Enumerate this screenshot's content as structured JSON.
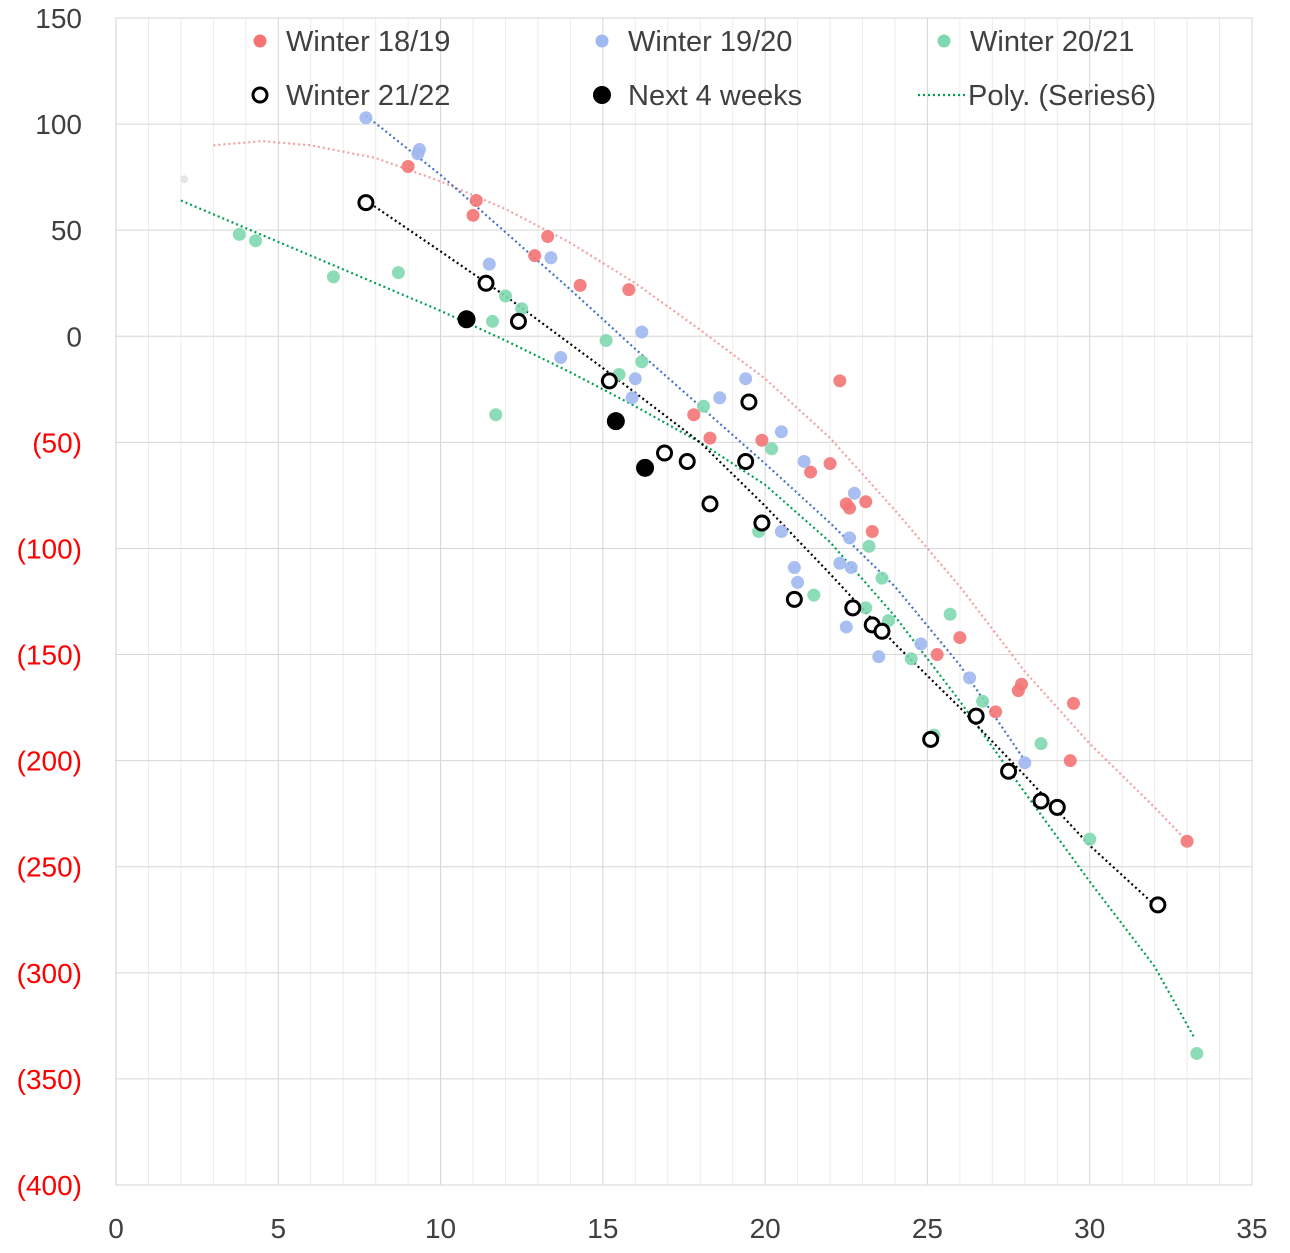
{
  "chart_data": {
    "type": "scatter",
    "title": "",
    "xlabel": "",
    "ylabel": "",
    "xlim": [
      0,
      35
    ],
    "ylim": [
      -400,
      150
    ],
    "x_ticks": [
      0,
      5,
      10,
      15,
      20,
      25,
      30,
      35
    ],
    "x_tick_labels": [
      "0",
      "5",
      "10",
      "15",
      "20",
      "25",
      "30",
      "35"
    ],
    "y_ticks": [
      150,
      100,
      50,
      0,
      -50,
      -100,
      -150,
      -200,
      -250,
      -300,
      -350,
      -400
    ],
    "y_tick_labels": [
      "150",
      "100",
      "50",
      "0",
      "(50)",
      "(100)",
      "(150)",
      "(200)",
      "(250)",
      "(300)",
      "(350)",
      "(400)"
    ],
    "negative_label_color": "#ff0000",
    "grid": true,
    "minor_vertical_grid": true,
    "legend_position": "top",
    "legend": [
      {
        "label": "Winter 18/19",
        "series": "winter-18-19"
      },
      {
        "label": "Winter 19/20",
        "series": "winter-19-20"
      },
      {
        "label": "Winter 20/21",
        "series": "winter-20-21"
      },
      {
        "label": "Winter 21/22",
        "series": "winter-21-22"
      },
      {
        "label": "Next 4 weeks",
        "series": "next-4-weeks"
      },
      {
        "label": "Poly. (Series6)",
        "series": "poly-series6"
      }
    ],
    "series": [
      {
        "id": "winter-18-19",
        "name": "Winter 18/19",
        "color": "#f47474",
        "marker": "filled-circle",
        "points": [
          [
            9.0,
            80
          ],
          [
            11.0,
            57
          ],
          [
            11.1,
            64
          ],
          [
            12.9,
            38
          ],
          [
            13.3,
            47
          ],
          [
            14.3,
            24
          ],
          [
            15.8,
            22
          ],
          [
            17.8,
            -37
          ],
          [
            18.3,
            -48
          ],
          [
            19.9,
            -49
          ],
          [
            21.4,
            -64
          ],
          [
            22.0,
            -60
          ],
          [
            22.3,
            -21
          ],
          [
            22.5,
            -79
          ],
          [
            22.6,
            -81
          ],
          [
            23.1,
            -78
          ],
          [
            23.3,
            -92
          ],
          [
            25.3,
            -150
          ],
          [
            26.0,
            -142
          ],
          [
            27.1,
            -177
          ],
          [
            27.8,
            -167
          ],
          [
            27.9,
            -164
          ],
          [
            29.4,
            -200
          ],
          [
            29.5,
            -173
          ],
          [
            33.0,
            -238
          ]
        ]
      },
      {
        "id": "winter-19-20",
        "name": "Winter 19/20",
        "color": "#a0b8f0",
        "marker": "filled-circle",
        "points": [
          [
            7.7,
            103
          ],
          [
            9.3,
            86
          ],
          [
            9.35,
            88
          ],
          [
            11.5,
            34
          ],
          [
            13.4,
            37
          ],
          [
            13.7,
            -10
          ],
          [
            15.9,
            -29
          ],
          [
            16.0,
            -20
          ],
          [
            16.2,
            2
          ],
          [
            18.6,
            -29
          ],
          [
            19.4,
            -20
          ],
          [
            20.5,
            -45
          ],
          [
            20.5,
            -92
          ],
          [
            20.9,
            -109
          ],
          [
            21.0,
            -116
          ],
          [
            21.2,
            -59
          ],
          [
            22.3,
            -107
          ],
          [
            22.5,
            -137
          ],
          [
            22.6,
            -95
          ],
          [
            22.65,
            -109
          ],
          [
            22.75,
            -74
          ],
          [
            23.5,
            -151
          ],
          [
            24.8,
            -145
          ],
          [
            26.3,
            -161
          ],
          [
            28.0,
            -201
          ]
        ]
      },
      {
        "id": "winter-20-21",
        "name": "Winter 20/21",
        "color": "#80d8b0",
        "marker": "filled-circle",
        "points": [
          [
            3.8,
            48
          ],
          [
            4.3,
            45
          ],
          [
            6.7,
            28
          ],
          [
            8.7,
            30
          ],
          [
            11.6,
            7
          ],
          [
            11.7,
            -37
          ],
          [
            12.0,
            19
          ],
          [
            12.5,
            13
          ],
          [
            15.1,
            -2
          ],
          [
            15.5,
            -18
          ],
          [
            16.2,
            -12
          ],
          [
            18.1,
            -33
          ],
          [
            19.8,
            -92
          ],
          [
            20.2,
            -53
          ],
          [
            21.5,
            -122
          ],
          [
            23.1,
            -128
          ],
          [
            23.2,
            -99
          ],
          [
            23.6,
            -114
          ],
          [
            23.8,
            -134
          ],
          [
            24.5,
            -152
          ],
          [
            25.2,
            -188
          ],
          [
            25.7,
            -131
          ],
          [
            26.7,
            -172
          ],
          [
            28.5,
            -192
          ],
          [
            29.0,
            -223
          ],
          [
            30.0,
            -237
          ],
          [
            33.3,
            -338
          ]
        ]
      },
      {
        "id": "winter-21-22",
        "name": "Winter 21/22",
        "color": "#000000",
        "marker": "open-circle",
        "points": [
          [
            7.7,
            63
          ],
          [
            11.4,
            25
          ],
          [
            12.4,
            7
          ],
          [
            15.2,
            -21
          ],
          [
            16.9,
            -55
          ],
          [
            17.6,
            -59
          ],
          [
            18.3,
            -79
          ],
          [
            19.4,
            -59
          ],
          [
            19.5,
            -31
          ],
          [
            19.9,
            -88
          ],
          [
            20.9,
            -124
          ],
          [
            22.7,
            -128
          ],
          [
            23.3,
            -136
          ],
          [
            23.6,
            -139
          ],
          [
            25.1,
            -190
          ],
          [
            26.5,
            -179
          ],
          [
            27.5,
            -205
          ],
          [
            28.5,
            -219
          ],
          [
            29.0,
            -222
          ],
          [
            32.1,
            -268
          ]
        ]
      },
      {
        "id": "next-4-weeks",
        "name": "Next 4 weeks",
        "color": "#000000",
        "marker": "filled-circle-large",
        "points": [
          [
            10.8,
            8
          ],
          [
            15.4,
            -40
          ],
          [
            16.3,
            -62
          ]
        ]
      }
    ],
    "trendlines": [
      {
        "id": "trend-18-19",
        "color": "#f4a0a0",
        "points": [
          [
            3,
            90
          ],
          [
            4.5,
            92
          ],
          [
            6,
            90
          ],
          [
            8,
            84
          ],
          [
            10,
            73
          ],
          [
            12,
            60
          ],
          [
            14,
            44
          ],
          [
            16,
            25
          ],
          [
            18,
            3
          ],
          [
            20,
            -20
          ],
          [
            22,
            -48
          ],
          [
            24,
            -82
          ],
          [
            26,
            -118
          ],
          [
            28,
            -158
          ],
          [
            30,
            -192
          ],
          [
            32,
            -222
          ],
          [
            33,
            -238
          ]
        ]
      },
      {
        "id": "trend-19-20",
        "color": "#4472c4",
        "points": [
          [
            7.7,
            104
          ],
          [
            10,
            76
          ],
          [
            12,
            49
          ],
          [
            14,
            22
          ],
          [
            16,
            -6
          ],
          [
            18,
            -33
          ],
          [
            20,
            -60
          ],
          [
            22,
            -88
          ],
          [
            24,
            -118
          ],
          [
            26,
            -155
          ],
          [
            28,
            -200
          ]
        ]
      },
      {
        "id": "poly-series6",
        "name": "Poly. (Series6)",
        "color": "#00a050",
        "points": [
          [
            2,
            64
          ],
          [
            4,
            51
          ],
          [
            6,
            38
          ],
          [
            8,
            25
          ],
          [
            10,
            12
          ],
          [
            12,
            -2
          ],
          [
            14,
            -17
          ],
          [
            16,
            -33
          ],
          [
            18,
            -50
          ],
          [
            20,
            -70
          ],
          [
            22,
            -97
          ],
          [
            24,
            -132
          ],
          [
            26,
            -172
          ],
          [
            28,
            -215
          ],
          [
            30,
            -257
          ],
          [
            32,
            -297
          ],
          [
            33.2,
            -330
          ]
        ]
      },
      {
        "id": "trend-21-22",
        "color": "#000000",
        "points": [
          [
            7.7,
            64
          ],
          [
            10,
            40
          ],
          [
            12,
            19
          ],
          [
            15,
            -15
          ],
          [
            18,
            -50
          ],
          [
            20,
            -80
          ],
          [
            22,
            -112
          ],
          [
            24,
            -145
          ],
          [
            26,
            -175
          ],
          [
            28,
            -207
          ],
          [
            30,
            -240
          ],
          [
            32,
            -268
          ]
        ]
      }
    ]
  }
}
